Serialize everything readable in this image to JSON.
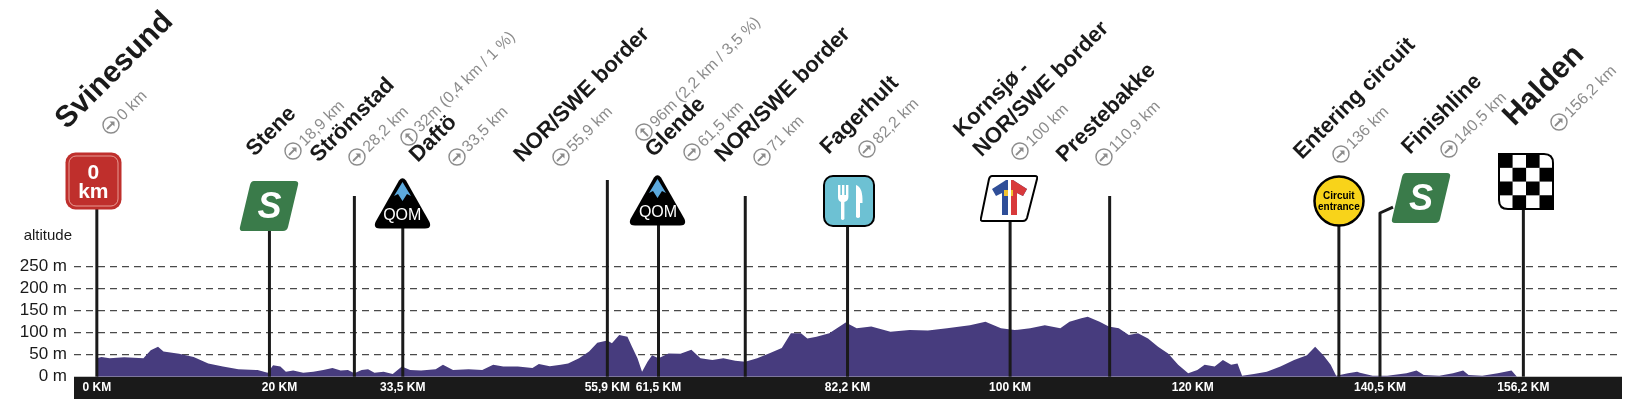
{
  "chart_data": {
    "type": "area",
    "ylabel": "altitude",
    "color": "#473c7e",
    "x": [
      0,
      0.5,
      1.4,
      3.0,
      5.1,
      5.9,
      6.7,
      7.3,
      9.0,
      10.6,
      12.2,
      13.8,
      15.5,
      17.6,
      18.7,
      19.3,
      20.1,
      20.7,
      21.5,
      22.6,
      23.7,
      24.8,
      25.8,
      26.7,
      27.5,
      28.2,
      29.0,
      29.7,
      30.4,
      31.4,
      32.4,
      33.4,
      34.3,
      35.5,
      37.1,
      37.9,
      39.0,
      40.7,
      42.2,
      43.4,
      44.5,
      46.1,
      47.7,
      48.4,
      49.6,
      50.8,
      51.6,
      52.8,
      53.9,
      54.8,
      55.9,
      56.4,
      57.2,
      58.1,
      58.6,
      59.2,
      59.7,
      60.3,
      60.8,
      61.5,
      62.6,
      63.9,
      65.1,
      66.1,
      67.4,
      68.6,
      69.9,
      71.0,
      72.3,
      73.6,
      75.0,
      76.0,
      77.1,
      77.8,
      78.8,
      80.2,
      82.0,
      83.2,
      84.8,
      86.9,
      89.0,
      91.0,
      93.1,
      95.6,
      97.3,
      99.0,
      100.5,
      102.2,
      103.8,
      105.5,
      106.5,
      107.8,
      108.5,
      109.8,
      110.8,
      111.9,
      113.0,
      114.0,
      115.1,
      116.2,
      117.3,
      118.4,
      119.5,
      120.5,
      121.3,
      122.4,
      123.3,
      124.2,
      124.9,
      125.4,
      126.7,
      128.1,
      129.6,
      131.1,
      132.5,
      133.4,
      134.3,
      135.1,
      135.7,
      137.0,
      138.0,
      138.3,
      139.7,
      141.3,
      143.4,
      144.5,
      145.3,
      147.0,
      148.5,
      149.6,
      150.2,
      151.7,
      153.4,
      154.9,
      155.5
    ],
    "values": [
      42,
      45,
      42,
      44,
      42,
      60,
      68,
      57,
      52,
      45,
      30,
      23,
      17,
      15,
      9,
      26,
      23,
      11,
      14,
      9,
      11,
      15,
      20,
      14,
      15,
      8,
      15,
      17,
      9,
      11,
      6,
      23,
      15,
      14,
      17,
      27,
      15,
      17,
      15,
      27,
      23,
      23,
      20,
      29,
      24,
      27,
      30,
      42,
      57,
      77,
      82,
      76,
      95,
      91,
      68,
      42,
      11,
      34,
      49,
      42,
      53,
      52,
      61,
      42,
      38,
      42,
      36,
      34,
      42,
      53,
      65,
      99,
      99,
      87,
      91,
      99,
      123,
      110,
      114,
      102,
      106,
      105,
      110,
      117,
      125,
      110,
      106,
      110,
      117,
      110,
      125,
      133,
      136,
      125,
      114,
      110,
      95,
      99,
      87,
      68,
      53,
      27,
      8,
      15,
      27,
      23,
      38,
      27,
      30,
      2,
      6,
      11,
      23,
      38,
      49,
      68,
      49,
      27,
      2,
      8,
      11,
      9,
      2,
      2,
      8,
      14,
      4,
      2,
      8,
      14,
      4,
      2,
      8,
      14,
      0
    ],
    "xlim": [
      -2.5,
      167
    ],
    "xticks": [
      {
        "value": 0,
        "label": "0 KM"
      },
      {
        "value": 20,
        "label": "20 KM"
      },
      {
        "value": 33.5,
        "label": "33,5 KM"
      },
      {
        "value": 55.9,
        "label": "55,9 KM"
      },
      {
        "value": 61.5,
        "label": "61,5 KM"
      },
      {
        "value": 82.2,
        "label": "82,2 KM"
      },
      {
        "value": 100,
        "label": "100 KM"
      },
      {
        "value": 120,
        "label": "120 KM"
      },
      {
        "value": 140.5,
        "label": "140,5 KM"
      },
      {
        "value": 156.2,
        "label": "156,2 KM"
      }
    ],
    "ylim": [
      0,
      250
    ],
    "yticks": [
      {
        "value": 0,
        "label": "0 m"
      },
      {
        "value": 50,
        "label": "50 m"
      },
      {
        "value": 100,
        "label": "100 m"
      },
      {
        "value": 150,
        "label": "150 m"
      },
      {
        "value": 200,
        "label": "200 m"
      },
      {
        "value": 250,
        "label": "250 m"
      }
    ],
    "grid": "y",
    "ref_lines": [
      {
        "axis": "x",
        "value": 0,
        "label": "Svinesund",
        "color": "#1a1a1a"
      },
      {
        "axis": "x",
        "value": 18.9,
        "label": "Stene",
        "color": "#1a1a1a"
      },
      {
        "axis": "x",
        "value": 28.2,
        "label": "Strömstad",
        "color": "#1a1a1a"
      },
      {
        "axis": "x",
        "value": 33.5,
        "label": "Daftö",
        "color": "#1a1a1a"
      },
      {
        "axis": "x",
        "value": 55.9,
        "label": "NOR/SWE border",
        "color": "#1a1a1a"
      },
      {
        "axis": "x",
        "value": 61.5,
        "label": "Glende",
        "color": "#1a1a1a"
      },
      {
        "axis": "x",
        "value": 71,
        "label": "NOR/SWE border",
        "color": "#1a1a1a"
      },
      {
        "axis": "x",
        "value": 82.2,
        "label": "Fagerhult",
        "color": "#1a1a1a"
      },
      {
        "axis": "x",
        "value": 100,
        "label": "Kornsjø - NOR/SWE border",
        "color": "#1a1a1a"
      },
      {
        "axis": "x",
        "value": 110.9,
        "label": "Prestebakke",
        "color": "#1a1a1a"
      },
      {
        "axis": "x",
        "value": 136,
        "label": "Entering circuit",
        "color": "#1a1a1a"
      },
      {
        "axis": "x",
        "value": 140.5,
        "label": "Finishline",
        "color": "#1a1a1a"
      },
      {
        "axis": "x",
        "value": 156.2,
        "label": "Halden",
        "color": "#1a1a1a"
      }
    ],
    "annotations": [
      "0 km",
      "0 km",
      "18,9 km",
      "S",
      "28,2 km",
      "32m (0,4 km / 1 %)",
      "33,5 km",
      "QOM",
      "55,9 km",
      "96m (2,2 km / 3,5 %)",
      "61,5 km",
      "QOM",
      "71 km",
      "82,2 km",
      "100 km",
      "110,9 km",
      "136 km",
      "Circuit entrance",
      "140,5 km",
      "S",
      "156,2 km"
    ]
  }
}
